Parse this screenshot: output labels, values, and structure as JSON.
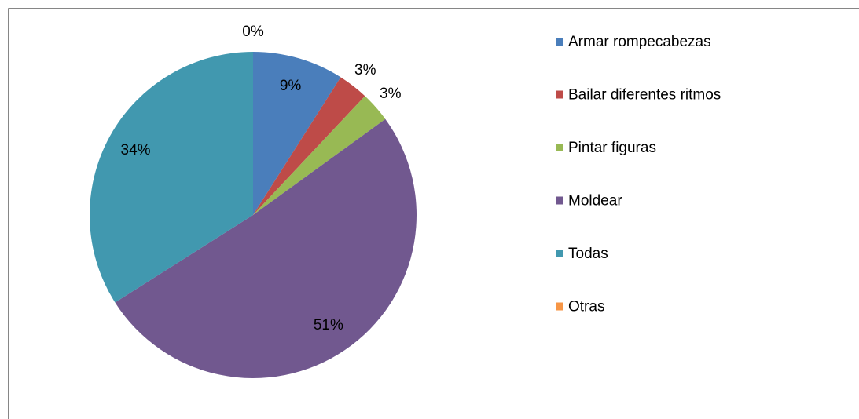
{
  "chart_data": {
    "type": "pie",
    "categories": [
      "Armar rompecabezas",
      "Bailar diferentes ritmos",
      "Pintar figuras",
      "Moldear",
      "Todas",
      "Otras"
    ],
    "values": [
      9,
      3,
      3,
      51,
      34,
      0
    ],
    "value_labels": [
      "9%",
      "3%",
      "3%",
      "51%",
      "34%",
      "0%"
    ],
    "colors": [
      "#4a7ebb",
      "#be4b48",
      "#98b954",
      "#71588f",
      "#4198af",
      "#f79646"
    ],
    "legend": "right"
  }
}
